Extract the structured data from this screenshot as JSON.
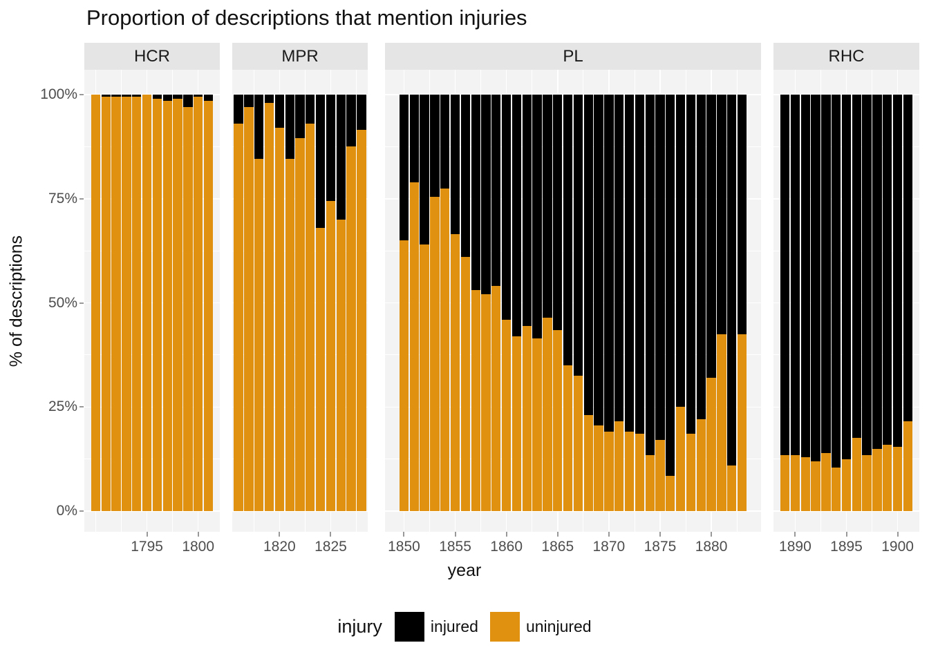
{
  "title": "Proportion of descriptions that mention injuries",
  "x_axis": {
    "title": "year"
  },
  "y_axis": {
    "title": "% of descriptions",
    "ticks": [
      {
        "label": "100%",
        "value": 100
      },
      {
        "label": "75%",
        "value": 75
      },
      {
        "label": "50%",
        "value": 50
      },
      {
        "label": "25%",
        "value": 25
      },
      {
        "label": "0%",
        "value": 0
      }
    ]
  },
  "legend": {
    "title": "injury",
    "items": [
      {
        "label": "injured",
        "color": "#000000"
      },
      {
        "label": "uninjured",
        "color": "#e0910f"
      }
    ]
  },
  "colors": {
    "injured": "#000000",
    "uninjured": "#e0910f",
    "panel_background": "#f3f3f3",
    "strip_background": "#e5e5e5",
    "gridline": "#ffffff",
    "tick_text": "#4d4d4d"
  },
  "chart_data": {
    "type": "bar",
    "stacked": true,
    "ylim": [
      0,
      100
    ],
    "y_unit": "percent",
    "legend_position": "bottom",
    "grid": true,
    "facets": [
      {
        "label": "HCR",
        "years": [
          1790,
          1791,
          1792,
          1793,
          1794,
          1795,
          1796,
          1797,
          1798,
          1799,
          1800,
          1801
        ],
        "series": [
          {
            "name": "uninjured",
            "values": [
              100,
              99.5,
              99.5,
              99.5,
              99.5,
              100,
              99,
              98.5,
              99,
              97,
              99.5,
              98.5
            ]
          },
          {
            "name": "injured",
            "values": [
              0,
              0.5,
              0.5,
              0.5,
              0.5,
              0,
              1,
              1.5,
              1,
              3,
              0.5,
              1.5
            ]
          }
        ],
        "x_ticks": [
          1795,
          1800
        ]
      },
      {
        "label": "MPR",
        "years": [
          1816,
          1817,
          1818,
          1819,
          1820,
          1821,
          1822,
          1823,
          1824,
          1825,
          1826,
          1827,
          1828
        ],
        "series": [
          {
            "name": "uninjured",
            "values": [
              93,
              97,
              84.5,
              98,
              92,
              84.5,
              89.5,
              93,
              68,
              74.5,
              70,
              87.5,
              91.5
            ]
          },
          {
            "name": "injured",
            "values": [
              7,
              3,
              15.5,
              2,
              8,
              15.5,
              10.5,
              7,
              32,
              25.5,
              30,
              12.5,
              8.5
            ]
          }
        ],
        "x_ticks": [
          1820,
          1825
        ]
      },
      {
        "label": "PL",
        "years": [
          1850,
          1851,
          1852,
          1853,
          1854,
          1855,
          1856,
          1857,
          1858,
          1859,
          1860,
          1861,
          1862,
          1863,
          1864,
          1865,
          1866,
          1867,
          1868,
          1869,
          1870,
          1871,
          1872,
          1873,
          1874,
          1875,
          1876,
          1877,
          1878,
          1879,
          1880,
          1881,
          1882,
          1883
        ],
        "series": [
          {
            "name": "uninjured",
            "values": [
              65,
              79,
              64,
              75.5,
              77.5,
              66.5,
              61,
              53,
              52,
              54,
              46,
              42,
              44.5,
              41.5,
              46.5,
              43.5,
              35,
              32.5,
              23,
              20.5,
              19,
              21.5,
              19,
              18.5,
              13.5,
              17,
              8.5,
              25,
              18.5,
              22,
              32,
              42.5,
              11,
              42.5
            ]
          },
          {
            "name": "injured",
            "values": [
              35,
              21,
              36,
              24.5,
              22.5,
              33.5,
              39,
              47,
              48,
              46,
              54,
              58,
              55.5,
              58.5,
              53.5,
              56.5,
              65,
              67.5,
              77,
              79.5,
              81,
              78.5,
              81,
              81.5,
              86.5,
              83,
              91.5,
              75,
              81.5,
              78,
              68,
              57.5,
              89,
              57.5
            ]
          }
        ],
        "x_ticks": [
          1850,
          1855,
          1860,
          1865,
          1870,
          1875,
          1880
        ]
      },
      {
        "label": "RHC",
        "years": [
          1889,
          1890,
          1891,
          1892,
          1893,
          1894,
          1895,
          1896,
          1897,
          1898,
          1899,
          1900,
          1901
        ],
        "series": [
          {
            "name": "uninjured",
            "values": [
              13.5,
              13.5,
              13,
              12,
              14,
              10.5,
              12.5,
              17.5,
              13.5,
              15,
              16,
              15.5,
              21.5
            ]
          },
          {
            "name": "injured",
            "values": [
              86.5,
              86.5,
              87,
              88,
              86,
              89.5,
              87.5,
              82.5,
              86.5,
              85,
              84,
              84.5,
              78.5
            ]
          }
        ],
        "x_ticks": [
          1890,
          1895,
          1900
        ]
      }
    ]
  }
}
